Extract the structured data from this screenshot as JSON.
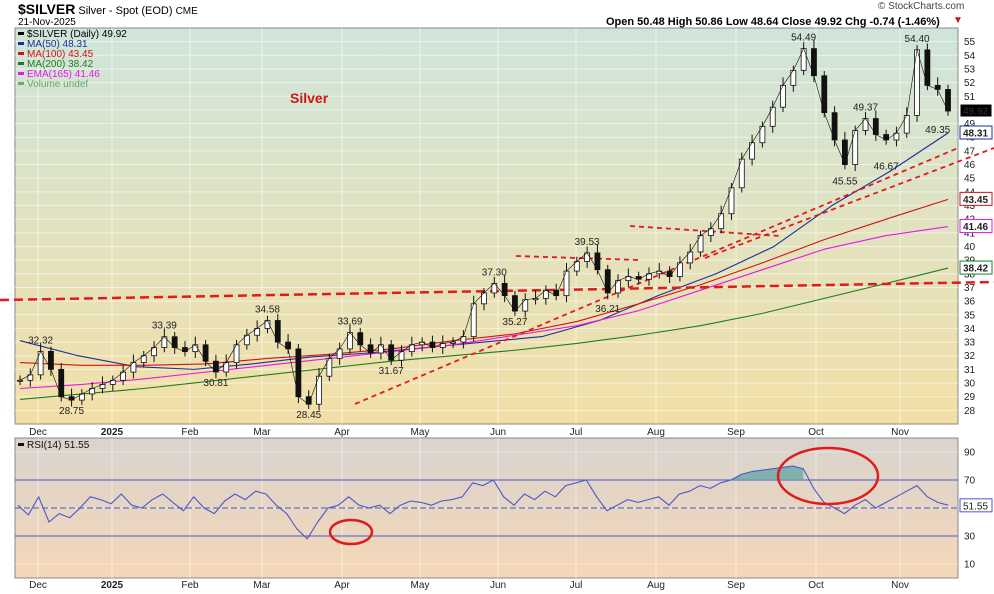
{
  "header": {
    "symbol": "$SILVER",
    "subtitle": "Silver - Spot (EOD)",
    "exchange": "CME",
    "date": "21-Nov-2025",
    "ohlc": "Open 50.48  High 50.86  Low 48.64  Close 49.92  Chg -0.74 (-1.46%)",
    "copyright": "© StockCharts.com"
  },
  "chart_data": [
    {
      "type": "line",
      "title": "Silver",
      "ylim": [
        27,
        56
      ],
      "y_ticks": [
        28,
        29,
        30,
        31,
        32,
        33,
        34,
        35,
        36,
        37,
        38,
        39,
        40,
        41,
        42,
        43,
        44,
        45,
        46,
        47,
        48,
        49,
        50,
        51,
        52,
        53,
        54,
        55
      ],
      "x_ticks": [
        "Dec",
        "2025",
        "Feb",
        "Mar",
        "Apr",
        "May",
        "Jun",
        "Jul",
        "Aug",
        "Sep",
        "Oct",
        "Nov"
      ],
      "legend": [
        {
          "label": "$SILVER (Daily) 49.92",
          "color": "#000000"
        },
        {
          "label": "MA(50) 48.31",
          "color": "#1c2f99"
        },
        {
          "label": "MA(100) 43.45",
          "color": "#d11414"
        },
        {
          "label": "MA(200) 38.42",
          "color": "#1f7d1f"
        },
        {
          "label": "EMA(165) 41.46",
          "color": "#e816e8"
        },
        {
          "label": "Volume undef",
          "color": "#66aa66"
        }
      ],
      "series": [
        {
          "name": "$SILVER (Daily)",
          "values": [
            30.2,
            30.6,
            32.32,
            31.0,
            29.0,
            28.75,
            29.2,
            29.6,
            29.9,
            30.2,
            30.8,
            31.5,
            32.0,
            32.6,
            33.39,
            32.6,
            32.3,
            32.8,
            31.6,
            30.81,
            31.5,
            32.8,
            33.5,
            34.0,
            34.58,
            33.0,
            32.5,
            29.0,
            28.45,
            30.5,
            31.8,
            32.5,
            33.69,
            32.8,
            32.2,
            32.8,
            31.67,
            32.3,
            32.8,
            33.0,
            32.6,
            32.9,
            33.0,
            33.4,
            35.8,
            36.6,
            37.3,
            36.4,
            35.27,
            36.1,
            36.2,
            36.8,
            36.4,
            38.2,
            38.9,
            39.53,
            38.3,
            36.6,
            37.5,
            37.8,
            37.6,
            38.0,
            38.2,
            37.8,
            38.8,
            39.6,
            40.8,
            41.3,
            42.4,
            44.3,
            46.4,
            47.6,
            48.8,
            50.2,
            51.8,
            52.9,
            54.49,
            52.5,
            49.8,
            47.8,
            46.0,
            48.5,
            49.37,
            48.2,
            47.8,
            48.3,
            49.6,
            54.4,
            51.8,
            51.5,
            49.92
          ]
        },
        {
          "name": "MA(50)",
          "values": [
            33.1,
            32.0,
            31.2,
            31.0,
            31.4,
            31.9,
            32.2,
            32.6,
            33.0,
            33.4,
            34.6,
            36.4,
            38.0,
            40.0,
            43.0,
            45.5,
            48.31
          ]
        },
        {
          "name": "MA(100)",
          "values": [
            31.5,
            31.3,
            31.3,
            31.4,
            31.8,
            32.1,
            32.5,
            33.1,
            33.6,
            34.5,
            35.8,
            37.2,
            38.8,
            40.5,
            42.0,
            43.45
          ]
        },
        {
          "name": "MA(200)",
          "values": [
            28.8,
            29.2,
            29.6,
            30.1,
            30.6,
            31.1,
            31.6,
            32.0,
            32.4,
            32.9,
            33.5,
            34.2,
            35.1,
            36.2,
            37.3,
            38.42
          ]
        },
        {
          "name": "EMA(165)",
          "values": [
            29.6,
            29.9,
            30.3,
            30.8,
            31.3,
            31.8,
            32.3,
            32.8,
            33.5,
            34.2,
            35.3,
            36.8,
            38.3,
            39.8,
            40.8,
            41.46
          ]
        }
      ],
      "annotations": [
        {
          "text": "32.32",
          "x": 2,
          "y": 32.32
        },
        {
          "text": "28.75",
          "x": 5,
          "y": 28.75
        },
        {
          "text": "33.39",
          "x": 14,
          "y": 33.39
        },
        {
          "text": "30.81",
          "x": 19,
          "y": 30.81
        },
        {
          "text": "34.58",
          "x": 24,
          "y": 34.58
        },
        {
          "text": "28.45",
          "x": 28,
          "y": 28.45
        },
        {
          "text": "33.69",
          "x": 32,
          "y": 33.69
        },
        {
          "text": "31.67",
          "x": 36,
          "y": 31.67
        },
        {
          "text": "37.30",
          "x": 46,
          "y": 37.3
        },
        {
          "text": "35.27",
          "x": 48,
          "y": 35.27
        },
        {
          "text": "39.53",
          "x": 55,
          "y": 39.53
        },
        {
          "text": "36.21",
          "x": 57,
          "y": 36.21
        },
        {
          "text": "54.49",
          "x": 76,
          "y": 54.49
        },
        {
          "text": "49.37",
          "x": 82,
          "y": 49.37
        },
        {
          "text": "45.55",
          "x": 80,
          "y": 45.55
        },
        {
          "text": "46.67",
          "x": 84,
          "y": 46.67
        },
        {
          "text": "54.40",
          "x": 87,
          "y": 54.4
        },
        {
          "text": "49.35",
          "x": 89,
          "y": 49.35
        }
      ],
      "right_badges": [
        {
          "text": "49.92",
          "value": 49.92,
          "bg": "#000000",
          "fg": "#ffffff"
        },
        {
          "text": "48.31",
          "value": 48.31,
          "bg": "#ffffff",
          "fg": "#1c2f99"
        },
        {
          "text": "43.45",
          "value": 43.45,
          "bg": "#ffffff",
          "fg": "#d11414"
        },
        {
          "text": "41.46",
          "value": 41.46,
          "bg": "#ffffff",
          "fg": "#e816e8"
        },
        {
          "text": "38.42",
          "value": 38.42,
          "bg": "#ffffff",
          "fg": "#1f7d1f"
        }
      ]
    },
    {
      "type": "line",
      "legend_label": "RSI(14) 51.55",
      "ylim": [
        0,
        100
      ],
      "y_ticks": [
        10,
        30,
        50,
        70,
        90
      ],
      "levels": [
        30,
        50,
        70
      ],
      "x_ticks": [
        "Dec",
        "2025",
        "Feb",
        "Mar",
        "Apr",
        "May",
        "Jun",
        "Jul",
        "Aug",
        "Sep",
        "Oct",
        "Nov"
      ],
      "series": [
        {
          "name": "RSI(14)",
          "values": [
            52,
            45,
            58,
            40,
            46,
            43,
            50,
            58,
            56,
            53,
            60,
            52,
            50,
            56,
            60,
            54,
            48,
            58,
            50,
            46,
            55,
            60,
            56,
            62,
            60,
            52,
            46,
            35,
            28,
            40,
            50,
            52,
            58,
            52,
            50,
            52,
            46,
            52,
            55,
            54,
            52,
            55,
            56,
            58,
            68,
            66,
            70,
            58,
            52,
            60,
            56,
            62,
            58,
            66,
            68,
            70,
            58,
            48,
            52,
            56,
            54,
            56,
            58,
            52,
            60,
            62,
            66,
            64,
            68,
            70,
            74,
            76,
            77,
            78,
            79,
            80,
            78,
            64,
            54,
            50,
            46,
            52,
            56,
            50,
            54,
            58,
            62,
            66,
            58,
            54,
            52
          ]
        }
      ],
      "right_badges": [
        {
          "text": "51.55",
          "value": 51.55
        }
      ]
    }
  ],
  "colors": {
    "price_bg_top": "#cfe5da",
    "price_bg_bottom": "#f3dfa6",
    "rsi_bg_top": "#d9d3cf",
    "rsi_bg_bottom": "#f5d7b6",
    "rsi_line": "#4a57cc",
    "rsi_fill_overbought": "#6aa6a6",
    "trendline_red": "#e11b1b"
  }
}
